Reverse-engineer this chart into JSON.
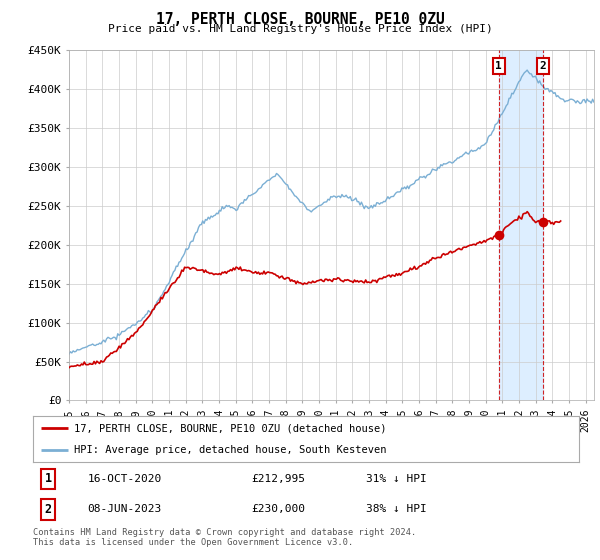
{
  "title": "17, PERTH CLOSE, BOURNE, PE10 0ZU",
  "subtitle": "Price paid vs. HM Land Registry's House Price Index (HPI)",
  "ylabel_ticks": [
    "£0",
    "£50K",
    "£100K",
    "£150K",
    "£200K",
    "£250K",
    "£300K",
    "£350K",
    "£400K",
    "£450K"
  ],
  "ytick_values": [
    0,
    50000,
    100000,
    150000,
    200000,
    250000,
    300000,
    350000,
    400000,
    450000
  ],
  "ylim": [
    0,
    450000
  ],
  "xlim_start": 1995.0,
  "xlim_end": 2026.5,
  "hpi_color": "#7bafd4",
  "price_color": "#cc0000",
  "shade_color": "#ddeeff",
  "grid_color": "#cccccc",
  "background_color": "#ffffff",
  "legend_label_red": "17, PERTH CLOSE, BOURNE, PE10 0ZU (detached house)",
  "legend_label_blue": "HPI: Average price, detached house, South Kesteven",
  "annotation1_label": "1",
  "annotation1_date": "16-OCT-2020",
  "annotation1_price": "£212,995",
  "annotation1_pct": "31% ↓ HPI",
  "annotation2_label": "2",
  "annotation2_date": "08-JUN-2023",
  "annotation2_price": "£230,000",
  "annotation2_pct": "38% ↓ HPI",
  "footer": "Contains HM Land Registry data © Crown copyright and database right 2024.\nThis data is licensed under the Open Government Licence v3.0.",
  "point1_x": 2020.79,
  "point1_y": 212995,
  "point2_x": 2023.44,
  "point2_y": 230000,
  "vline1_x": 2020.79,
  "vline2_x": 2023.44
}
